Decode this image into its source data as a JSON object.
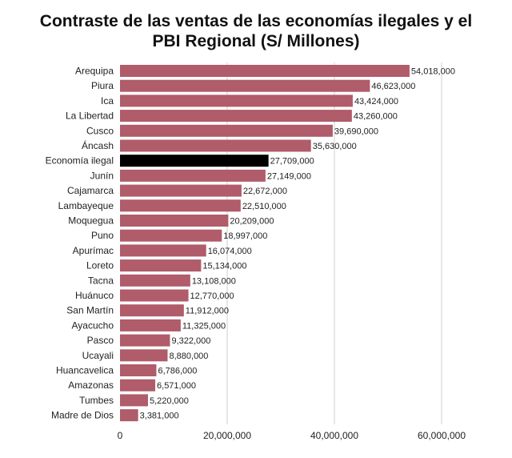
{
  "chart_data": {
    "type": "bar",
    "orientation": "horizontal",
    "title_line1": "Contraste de las ventas de las economías ilegales y el",
    "title_line2": "PBI Regional (S/ Millones)",
    "categories": [
      "Arequipa",
      "Piura",
      "Ica",
      "La Libertad",
      "Cusco",
      "Áncash",
      "Economía ilegal",
      "Junín",
      "Cajamarca",
      "Lambayeque",
      "Moquegua",
      "Puno",
      "Apurímac",
      "Loreto",
      "Tacna",
      "Huánuco",
      "San Martín",
      "Ayacucho",
      "Pasco",
      "Ucayali",
      "Huancavelica",
      "Amazonas",
      "Tumbes",
      "Madre de Dios"
    ],
    "values": [
      54018000,
      46623000,
      43424000,
      43260000,
      39690000,
      35630000,
      27709000,
      27149000,
      22672000,
      22510000,
      20209000,
      18997000,
      16074000,
      15134000,
      13108000,
      12770000,
      11912000,
      11325000,
      9322000,
      8880000,
      6786000,
      6571000,
      5220000,
      3381000
    ],
    "value_labels": [
      "54,018,000",
      "46,623,000",
      "43,424,000",
      "43,260,000",
      "39,690,000",
      "35,630,000",
      "27,709,000",
      "27,149,000",
      "22,672,000",
      "22,510,000",
      "20,209,000",
      "18,997,000",
      "16,074,000",
      "15,134,000",
      "13,108,000",
      "12,770,000",
      "11,912,000",
      "11,325,000",
      "9,322,000",
      "8,880,000",
      "6,786,000",
      "6,571,000",
      "5,220,000",
      "3,381,000"
    ],
    "highlight_category": "Economía ilegal",
    "x_ticks": [
      0,
      20000000,
      40000000,
      60000000
    ],
    "x_tick_labels": [
      "0",
      "20,000,000",
      "40,000,000",
      "60,000,000"
    ],
    "xlim": [
      0,
      65000000
    ],
    "grid": "vertical",
    "colors": {
      "bar": "#b05c6a",
      "highlight": "#000000",
      "grid": "#cfcfcf",
      "text": "#222222"
    }
  }
}
